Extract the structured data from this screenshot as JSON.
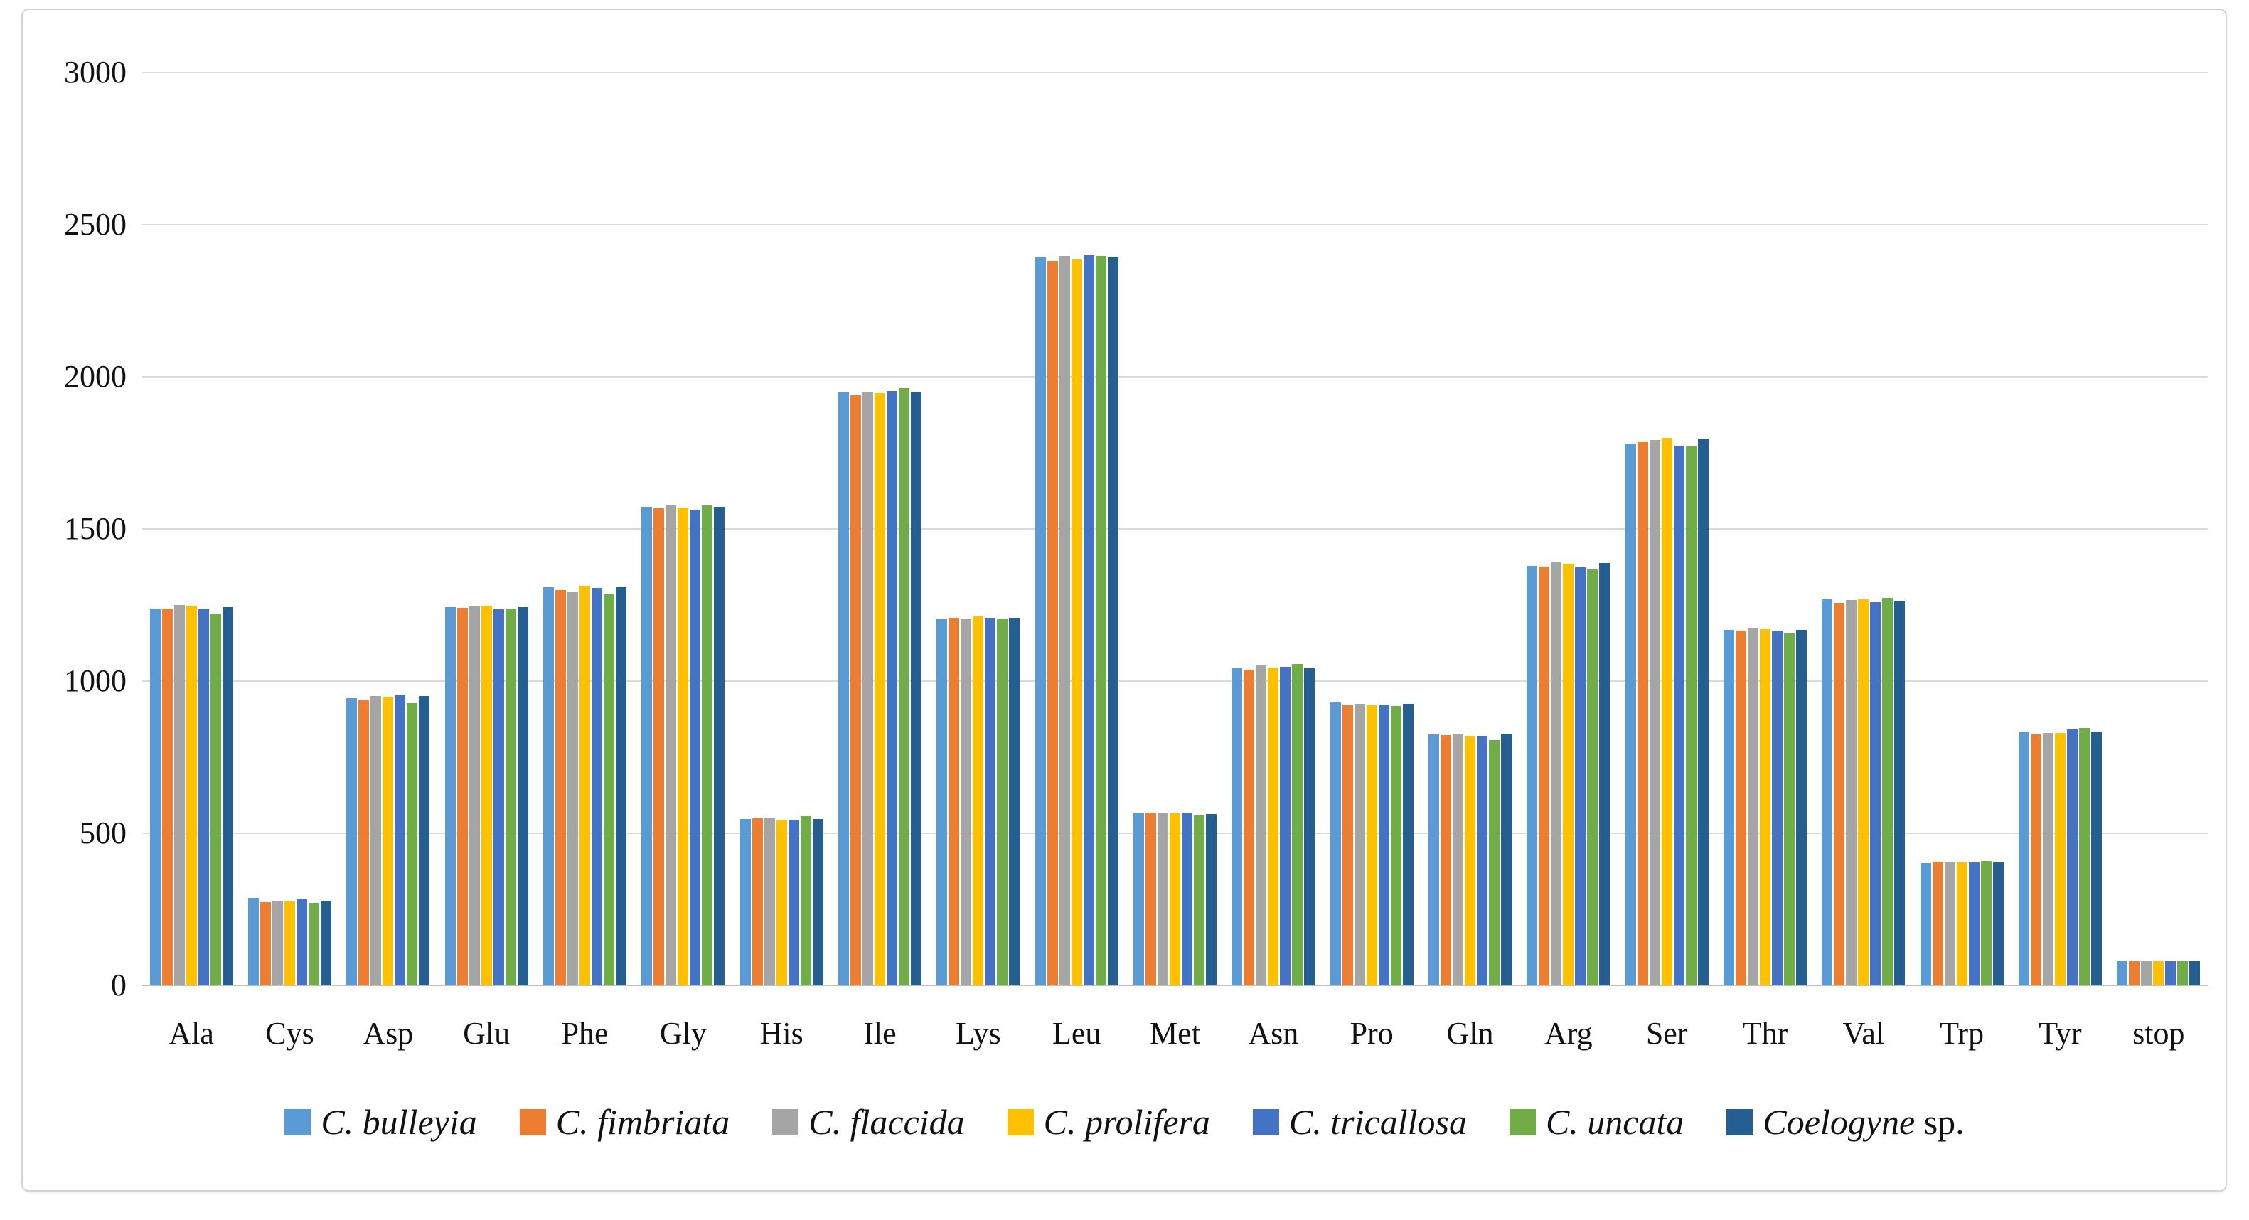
{
  "figure": {
    "background": "#ffffff",
    "panel_border_color": "#d2d2d2"
  },
  "chart_data": {
    "type": "bar",
    "title": "",
    "xlabel": "",
    "ylabel": "",
    "categories": [
      "Ala",
      "Cys",
      "Asp",
      "Glu",
      "Phe",
      "Gly",
      "His",
      "Ile",
      "Lys",
      "Leu",
      "Met",
      "Asn",
      "Pro",
      "Gln",
      "Arg",
      "Ser",
      "Thr",
      "Val",
      "Trp",
      "Tyr",
      "stop"
    ],
    "series": [
      {
        "name": "C. bulleyia",
        "suffix": "",
        "color": "#5B9BD5",
        "values": [
          1238,
          288,
          945,
          1243,
          1309,
          1572,
          547,
          1948,
          1205,
          2394,
          566,
          1042,
          930,
          825,
          1378,
          1780,
          1168,
          1271,
          402,
          832,
          79
        ]
      },
      {
        "name": "C. fimbriata",
        "suffix": "",
        "color": "#ED7D31",
        "values": [
          1238,
          273,
          938,
          1240,
          1300,
          1568,
          549,
          1939,
          1208,
          2380,
          565,
          1037,
          921,
          822,
          1376,
          1787,
          1166,
          1257,
          407,
          825,
          80
        ]
      },
      {
        "name": "C. flaccida",
        "suffix": "",
        "color": "#A5A5A5",
        "values": [
          1250,
          278,
          952,
          1245,
          1295,
          1576,
          549,
          1948,
          1203,
          2397,
          568,
          1051,
          925,
          827,
          1392,
          1792,
          1173,
          1266,
          404,
          829,
          79
        ]
      },
      {
        "name": "C. prolifera",
        "suffix": "",
        "color": "#FFC000",
        "values": [
          1247,
          276,
          949,
          1248,
          1314,
          1570,
          542,
          1946,
          1212,
          2385,
          565,
          1044,
          921,
          820,
          1385,
          1799,
          1170,
          1269,
          404,
          829,
          80
        ]
      },
      {
        "name": "C. tricallosa",
        "suffix": "",
        "color": "#4472C4",
        "values": [
          1238,
          284,
          954,
          1235,
          1307,
          1564,
          544,
          1953,
          1208,
          2399,
          568,
          1047,
          923,
          820,
          1374,
          1773,
          1166,
          1259,
          404,
          841,
          79
        ]
      },
      {
        "name": "C. uncata",
        "suffix": "",
        "color": "#70AD47",
        "values": [
          1220,
          272,
          927,
          1239,
          1287,
          1578,
          556,
          1962,
          1205,
          2397,
          558,
          1056,
          918,
          806,
          1367,
          1771,
          1156,
          1273,
          409,
          846,
          80
        ]
      },
      {
        "name": "Coelogyne",
        "suffix": " sp.",
        "color": "#255E91",
        "values": [
          1243,
          278,
          950,
          1242,
          1311,
          1572,
          547,
          1951,
          1208,
          2394,
          563,
          1042,
          925,
          827,
          1388,
          1796,
          1168,
          1264,
          404,
          834,
          80
        ]
      }
    ],
    "ylim": [
      0,
      3000
    ],
    "yticks": [
      0,
      500,
      1000,
      1500,
      2000,
      2500,
      3000
    ],
    "grid": "horizontal",
    "gridline_color": "#d9d9d9",
    "axis_line_color": "#bfbfbf",
    "tick_label_color": "#111111",
    "legend_position": "bottom"
  }
}
